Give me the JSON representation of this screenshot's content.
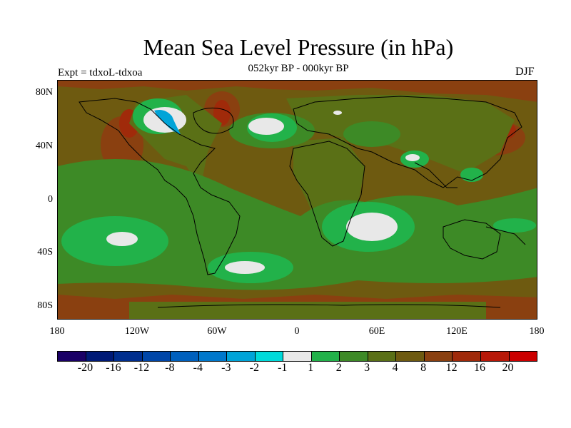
{
  "title": "Mean Sea Level Pressure (in hPa)",
  "subtitle": "052kyr BP - 000kyr BP",
  "experiment": "Expt = tdxoL-tdxoa",
  "season": "DJF",
  "lat_labels": [
    "80N",
    "40N",
    "0",
    "40S",
    "80S"
  ],
  "lon_labels": [
    "180",
    "120W",
    "60W",
    "0",
    "60E",
    "120E",
    "180"
  ],
  "colorbar": {
    "labels": [
      "-20",
      "-16",
      "-12",
      "-8",
      "-4",
      "-3",
      "-2",
      "-1",
      "1",
      "2",
      "3",
      "4",
      "8",
      "12",
      "16",
      "20"
    ],
    "colors": [
      "#1a0066",
      "#001a77",
      "#002e8e",
      "#0046a8",
      "#0060bd",
      "#0078cc",
      "#00a4d8",
      "#00dada",
      "#e8e8e8",
      "#22b24a",
      "#3d8a26",
      "#5a7016",
      "#6e5a10",
      "#8a4010",
      "#a02a0a",
      "#b81808",
      "#cc0000"
    ]
  },
  "map_colors": {
    "ocean_base": "#6e5a10",
    "land_base": "#5a7016",
    "high": "#8a4010",
    "very_high": "#a02a0a",
    "green_mid": "#3d8a26",
    "green_light": "#22b24a",
    "near_zero": "#e8e8e8",
    "neg_light": "#00a4d8",
    "coast": "#000000"
  }
}
